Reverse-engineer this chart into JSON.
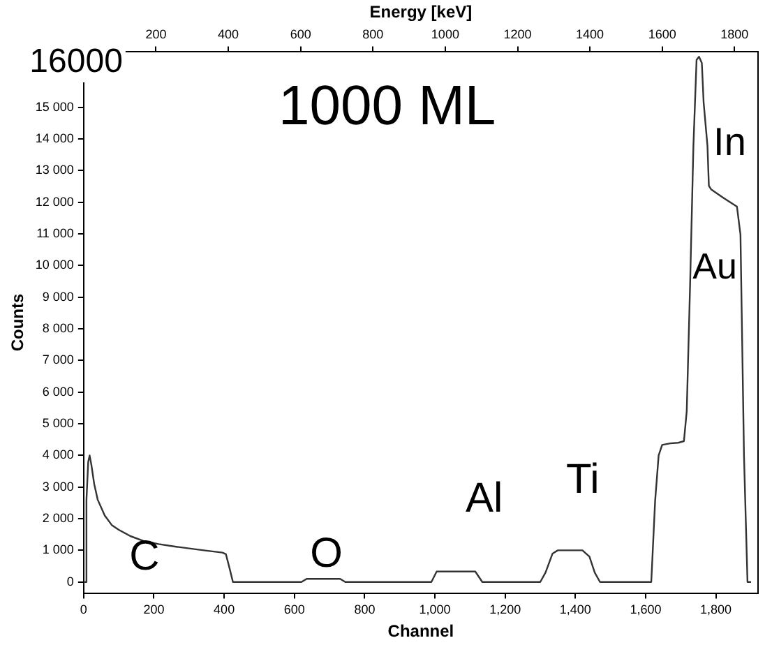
{
  "chart_data": {
    "type": "line",
    "xlabel": "Channel",
    "ylabel": "Counts",
    "x2label": "Energy [keV]",
    "series": [
      {
        "color": "#333333",
        "x": [
          0,
          5,
          8,
          13,
          17,
          22,
          30,
          40,
          60,
          80,
          100,
          133,
          170,
          213,
          260,
          300,
          350,
          395,
          405,
          415,
          425,
          620,
          635,
          730,
          745,
          990,
          1005,
          1115,
          1135,
          1300,
          1315,
          1335,
          1350,
          1420,
          1440,
          1455,
          1470,
          1616,
          1627,
          1637,
          1647,
          1670,
          1693,
          1709,
          1717,
          1727,
          1736,
          1745,
          1752,
          1760,
          1765,
          1776,
          1780,
          1787,
          1820,
          1860,
          1870,
          1880,
          1890,
          1900
        ],
        "values": [
          0,
          0,
          2600,
          3800,
          4000,
          3700,
          3100,
          2600,
          2100,
          1800,
          1650,
          1450,
          1300,
          1200,
          1120,
          1060,
          990,
          930,
          880,
          450,
          0,
          0,
          100,
          100,
          0,
          0,
          330,
          330,
          0,
          0,
          300,
          900,
          1000,
          1000,
          800,
          300,
          0,
          0,
          2560,
          4000,
          4330,
          4380,
          4400,
          4450,
          5400,
          9580,
          13780,
          16500,
          16600,
          16400,
          15170,
          13780,
          12520,
          12400,
          12150,
          11860,
          10970,
          4000,
          0,
          0
        ]
      }
    ],
    "xlim": [
      0,
      1920
    ],
    "ylim": [
      -350,
      16750
    ],
    "xticks": [
      0,
      200,
      400,
      600,
      800,
      {
        "value": 1000,
        "label": "1,000"
      },
      {
        "value": 1200,
        "label": "1,200"
      },
      {
        "value": 1400,
        "label": "1,400"
      },
      {
        "value": 1600,
        "label": "1,600"
      },
      {
        "value": 1800,
        "label": "1,800"
      }
    ],
    "yticks": [
      0,
      {
        "value": 1000,
        "label": "1 000"
      },
      {
        "value": 2000,
        "label": "2 000"
      },
      {
        "value": 3000,
        "label": "3 000"
      },
      {
        "value": 4000,
        "label": "4 000"
      },
      {
        "value": 5000,
        "label": "5 000"
      },
      {
        "value": 6000,
        "label": "6 000"
      },
      {
        "value": 7000,
        "label": "7 000"
      },
      {
        "value": 8000,
        "label": "8 000"
      },
      {
        "value": 9000,
        "label": "9 000"
      },
      {
        "value": 10000,
        "label": "10 000"
      },
      {
        "value": 11000,
        "label": "11 000"
      },
      {
        "value": 12000,
        "label": "12 000"
      },
      {
        "value": 13000,
        "label": "13 000"
      },
      {
        "value": 14000,
        "label": "14 000"
      },
      {
        "value": 15000,
        "label": "15 000"
      }
    ],
    "x2lim": [
      0,
      1865
    ],
    "x2ticks": [
      200,
      400,
      600,
      800,
      1000,
      1200,
      1400,
      1600,
      1800
    ],
    "grid": false,
    "legend": false,
    "marker": "none",
    "line_style": "solid",
    "annotations": [
      "16000",
      "1000 ML",
      "C",
      "O",
      "Al",
      "Ti",
      "In",
      "Au"
    ]
  }
}
